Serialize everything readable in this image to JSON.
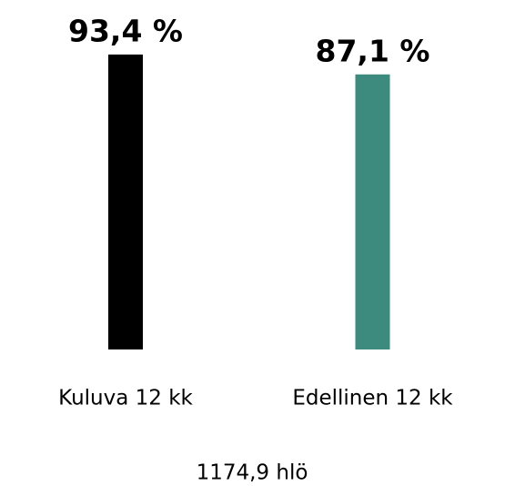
{
  "chart_data": {
    "type": "bar",
    "categories": [
      "Kuluva 12 kk",
      "Edellinen 12 kk"
    ],
    "values": [
      93.4,
      87.1
    ],
    "value_labels": [
      "93,4 %",
      "87,1 %"
    ],
    "colors": [
      "#000000",
      "#3d8a7e"
    ],
    "ylim": [
      0,
      100
    ],
    "caption": "1174,9 hlö"
  }
}
